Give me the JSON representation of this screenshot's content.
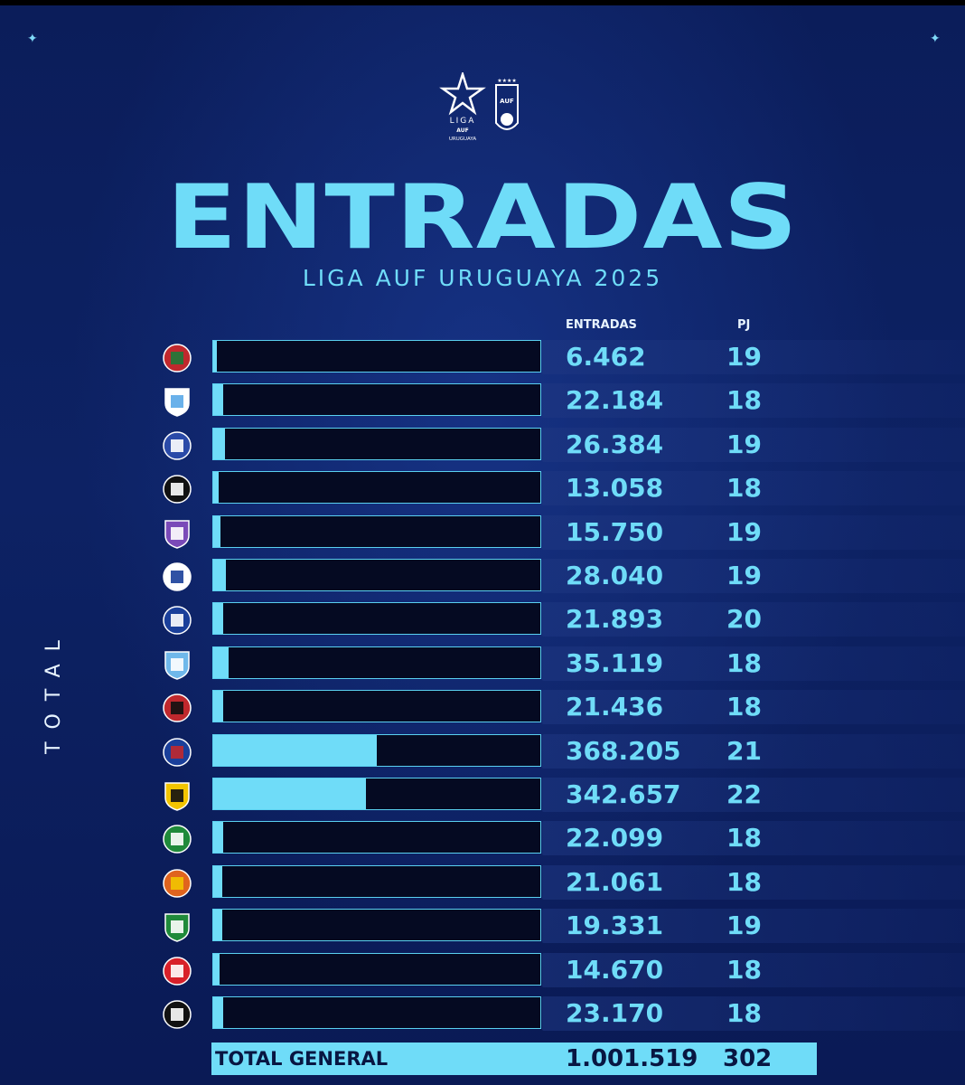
{
  "header": {
    "title": "ENTRADAS",
    "subtitle": "LIGA AUF URUGUAYA 2025",
    "liga_logo_text": [
      "LIGA",
      "AUF",
      "URUGUAYA"
    ],
    "auf_logo_text": "AUF"
  },
  "side_label": "TOTAL",
  "columns": {
    "entradas": "ENTRADAS",
    "pj": "PJ"
  },
  "colors": {
    "accent": "#6fdcf8",
    "background": "#0d2264",
    "track": "#050a22"
  },
  "chart_data": {
    "type": "bar",
    "orientation": "horizontal",
    "rows": [
      {
        "value": 6462,
        "value_label": "6.462",
        "pj": "19",
        "crest_colors": [
          "#c0282d",
          "#1d7a3a"
        ]
      },
      {
        "value": 22184,
        "value_label": "22.184",
        "pj": "18",
        "crest_colors": [
          "#ffffff",
          "#5aa8e8"
        ]
      },
      {
        "value": 26384,
        "value_label": "26.384",
        "pj": "19",
        "crest_colors": [
          "#2a4aa8",
          "#ffffff"
        ]
      },
      {
        "value": 13058,
        "value_label": "13.058",
        "pj": "18",
        "crest_colors": [
          "#111111",
          "#ffffff"
        ]
      },
      {
        "value": 15750,
        "value_label": "15.750",
        "pj": "19",
        "crest_colors": [
          "#7a4ab8",
          "#ffffff"
        ]
      },
      {
        "value": 28040,
        "value_label": "28.040",
        "pj": "19",
        "crest_colors": [
          "#ffffff",
          "#1a3f9a"
        ]
      },
      {
        "value": 21893,
        "value_label": "21.893",
        "pj": "20",
        "crest_colors": [
          "#1a3f9a",
          "#ffffff"
        ]
      },
      {
        "value": 35119,
        "value_label": "35.119",
        "pj": "18",
        "crest_colors": [
          "#6fb8ea",
          "#ffffff"
        ]
      },
      {
        "value": 21436,
        "value_label": "21.436",
        "pj": "18",
        "crest_colors": [
          "#c0282d",
          "#111111"
        ]
      },
      {
        "value": 368205,
        "value_label": "368.205",
        "pj": "21",
        "crest_colors": [
          "#1a3f9a",
          "#c0282d"
        ]
      },
      {
        "value": 342657,
        "value_label": "342.657",
        "pj": "22",
        "crest_colors": [
          "#f2c400",
          "#111111"
        ]
      },
      {
        "value": 22099,
        "value_label": "22.099",
        "pj": "18",
        "crest_colors": [
          "#1f8a3a",
          "#ffffff"
        ]
      },
      {
        "value": 21061,
        "value_label": "21.061",
        "pj": "18",
        "crest_colors": [
          "#e0641e",
          "#f2c400"
        ]
      },
      {
        "value": 19331,
        "value_label": "19.331",
        "pj": "19",
        "crest_colors": [
          "#1f8a3a",
          "#ffffff"
        ]
      },
      {
        "value": 14670,
        "value_label": "14.670",
        "pj": "18",
        "crest_colors": [
          "#d8202a",
          "#ffffff"
        ]
      },
      {
        "value": 23170,
        "value_label": "23.170",
        "pj": "18",
        "crest_colors": [
          "#111111",
          "#ffffff"
        ]
      }
    ],
    "xlim": [
      0,
      740000
    ],
    "grid": false
  },
  "total": {
    "label": "TOTAL GENERAL",
    "value": "1.001.519",
    "pj": "302"
  }
}
